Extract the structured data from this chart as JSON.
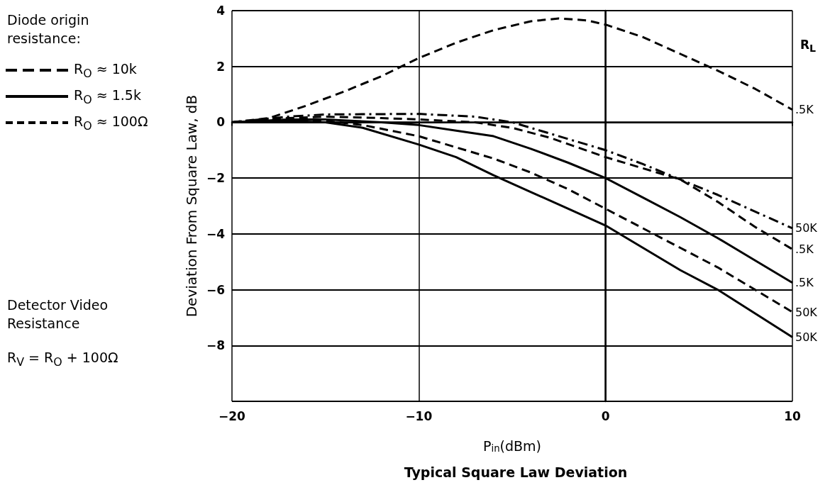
{
  "chart_data": {
    "type": "line",
    "title": "Typical Square Law Deviation",
    "xlabel": "P$_{in}$(dBm)",
    "ylabel": "Deviation From Square Law, dB",
    "legend_title": "Diode origin resistance:",
    "annotations": [
      "R$_{O}$ ≈ 10k",
      "R$_{O}$ ≈ 1.5k",
      "R$_{O}$ ≈ 100Ω",
      "R$_{L}$",
      "Detector Video Resistance",
      "R$_{V}$ = R$_{O}$ + 100Ω"
    ],
    "xlim": [
      -20,
      10
    ],
    "xticks": [
      -20,
      -10,
      0,
      10
    ],
    "ylim": [
      -10,
      4
    ],
    "yticks": [
      {
        "value": -10,
        "label": null
      },
      -8,
      -6,
      -4,
      -2,
      0,
      2,
      4
    ],
    "grid": true,
    "legend": false,
    "marker": "none",
    "series": [
      {
        "name": ".5K",
        "color": "#000000",
        "line_style": "dashed",
        "x": [
          -20,
          -18,
          -16,
          -14,
          -12,
          -10,
          -8,
          -6,
          -4,
          -2.5,
          -1,
          0,
          2,
          4,
          6,
          8,
          10
        ],
        "values": [
          0,
          0.15,
          0.6,
          1.1,
          1.65,
          2.3,
          2.85,
          3.3,
          3.62,
          3.72,
          3.65,
          3.5,
          3.05,
          2.45,
          1.85,
          1.2,
          0.45
        ]
      },
      {
        "name": "50K",
        "color": "#000000",
        "line_style": "dashdot",
        "x": [
          -20,
          -17,
          -15,
          -10,
          -7,
          -5,
          -3,
          0,
          2,
          4,
          6,
          8,
          10
        ],
        "values": [
          0,
          0.2,
          0.28,
          0.3,
          0.2,
          0.0,
          -0.4,
          -1.0,
          -1.5,
          -2.05,
          -2.6,
          -3.2,
          -3.8
        ]
      },
      {
        "name": ".5K",
        "color": "#000000",
        "line_style": "dashed",
        "x": [
          -20,
          -17,
          -15,
          -12,
          -10,
          -7,
          -5,
          -3,
          0,
          2,
          4,
          6,
          8,
          10
        ],
        "values": [
          0,
          0.15,
          0.2,
          0.15,
          0.1,
          0.0,
          -0.2,
          -0.55,
          -1.25,
          -1.65,
          -2.05,
          -2.85,
          -3.75,
          -4.55
        ]
      },
      {
        "name": ".5K",
        "color": "#000000",
        "line_style": "solid",
        "x": [
          -20,
          -17,
          -15,
          -12,
          -10,
          -8,
          -6,
          -4,
          -2,
          0,
          2,
          4,
          6,
          8,
          10
        ],
        "values": [
          0,
          0.1,
          0.1,
          0.0,
          -0.1,
          -0.3,
          -0.5,
          -0.95,
          -1.45,
          -2.0,
          -2.7,
          -3.4,
          -4.15,
          -4.95,
          -5.75
        ]
      },
      {
        "name": "50K",
        "color": "#000000",
        "line_style": "dashed",
        "x": [
          -20,
          -17,
          -15,
          -13,
          -10,
          -8,
          -6,
          -4,
          -2,
          0,
          2,
          4,
          6,
          8,
          10
        ],
        "values": [
          0,
          0.1,
          0.05,
          -0.1,
          -0.5,
          -0.9,
          -1.3,
          -1.8,
          -2.4,
          -3.1,
          -3.8,
          -4.5,
          -5.2,
          -6.0,
          -6.8
        ]
      },
      {
        "name": "50K",
        "color": "#000000",
        "line_style": "solid",
        "x": [
          -20,
          -17,
          -15,
          -13,
          -10,
          -8,
          -6,
          -4,
          -2,
          0,
          2,
          4,
          6,
          8,
          10
        ],
        "values": [
          0,
          0.05,
          0.0,
          -0.2,
          -0.8,
          -1.25,
          -1.9,
          -2.5,
          -3.1,
          -3.7,
          -4.5,
          -5.3,
          -6.0,
          -6.85,
          -7.7
        ]
      }
    ]
  }
}
